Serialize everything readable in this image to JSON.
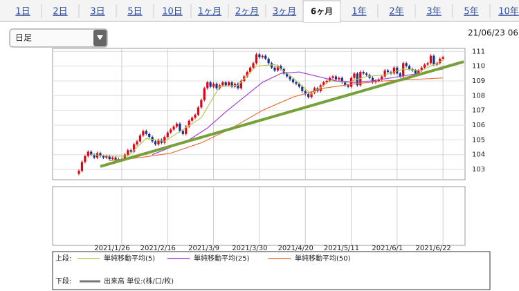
{
  "tabs": [
    "1日",
    "2日",
    "3日",
    "5日",
    "10日",
    "1ヶ月",
    "2ヶ月",
    "3ヶ月",
    "6ヶ月",
    "1年",
    "2年",
    "3年",
    "5年",
    "10年"
  ],
  "selected_tab": "6ヶ月",
  "dropdown": "日足",
  "timestamp": "21/06/23 06",
  "chart_data": {
    "type": "candlestick",
    "up_color": "#e60012",
    "down_color": "#1a2f8a",
    "open": [
      102.7,
      102.9,
      103.5,
      103.9,
      104.2,
      104.0,
      103.8,
      104.1,
      103.9,
      103.8,
      103.9,
      103.7,
      103.8,
      103.6,
      103.7,
      103.7,
      104.0,
      104.3,
      104.2,
      104.7,
      104.9,
      105.3,
      105.6,
      105.4,
      105.2,
      104.9,
      104.7,
      105.0,
      104.8,
      105.2,
      105.5,
      105.7,
      105.9,
      106.1,
      105.6,
      105.4,
      105.9,
      106.3,
      106.5,
      106.7,
      107.2,
      107.7,
      108.5,
      108.9,
      108.6,
      108.8,
      108.5,
      108.7,
      108.9,
      108.7,
      108.9,
      108.6,
      108.8,
      108.5,
      109.0,
      109.3,
      109.6,
      109.9,
      110.2,
      110.8,
      110.6,
      110.7,
      110.5,
      110.2,
      109.9,
      109.7,
      110.0,
      109.8,
      109.5,
      109.3,
      109.1,
      108.9,
      108.8,
      108.6,
      108.3,
      108.1,
      107.9,
      108.2,
      108.5,
      108.3,
      108.7,
      108.9,
      109.0,
      109.2,
      109.3,
      109.1,
      109.2,
      108.9,
      108.7,
      108.6,
      109.2,
      109.5,
      108.7,
      109.6,
      109.5,
      109.4,
      109.2,
      108.9,
      109.0,
      109.1,
      109.3,
      109.7,
      109.6,
      109.5,
      109.9,
      109.5,
      109.3,
      110.2,
      110.0,
      109.8,
      109.7,
      109.5,
      109.7,
      109.9,
      110.1,
      110.2,
      110.7,
      110.1,
      110.2,
      110.5
    ],
    "high": [
      103.0,
      103.6,
      104.0,
      104.3,
      104.3,
      104.1,
      104.2,
      104.2,
      104.0,
      104.0,
      104.0,
      103.9,
      103.9,
      103.8,
      103.8,
      104.1,
      104.4,
      104.4,
      104.8,
      105.0,
      105.4,
      105.7,
      105.7,
      105.5,
      105.3,
      105.0,
      105.1,
      105.1,
      105.3,
      105.6,
      105.8,
      106.0,
      106.2,
      106.2,
      105.7,
      106.0,
      106.4,
      106.6,
      106.8,
      107.3,
      107.8,
      108.6,
      109.0,
      109.0,
      108.9,
      108.9,
      108.8,
      109.0,
      109.0,
      109.0,
      109.0,
      108.9,
      108.9,
      109.1,
      109.4,
      109.7,
      110.0,
      110.3,
      110.9,
      110.9,
      110.8,
      110.8,
      110.6,
      110.3,
      110.0,
      110.1,
      110.1,
      109.9,
      109.6,
      109.4,
      109.2,
      109.0,
      108.9,
      108.7,
      108.4,
      108.2,
      108.3,
      108.6,
      108.6,
      108.8,
      109.0,
      109.1,
      109.3,
      109.4,
      109.4,
      109.3,
      109.3,
      109.0,
      108.8,
      109.3,
      109.6,
      109.6,
      109.7,
      109.7,
      109.6,
      109.5,
      109.3,
      109.1,
      109.2,
      109.4,
      109.8,
      109.8,
      109.7,
      110.0,
      110.0,
      109.6,
      110.3,
      110.3,
      110.1,
      109.9,
      109.8,
      109.8,
      110.0,
      110.2,
      110.3,
      110.8,
      110.8,
      110.3,
      110.6,
      110.7
    ],
    "low": [
      102.6,
      102.8,
      103.4,
      103.8,
      103.9,
      103.7,
      103.7,
      103.8,
      103.7,
      103.7,
      103.6,
      103.6,
      103.5,
      103.5,
      103.6,
      103.6,
      103.9,
      104.1,
      104.1,
      104.6,
      104.8,
      105.2,
      105.3,
      105.1,
      104.8,
      104.6,
      104.6,
      104.7,
      104.7,
      105.1,
      105.4,
      105.6,
      105.8,
      105.5,
      105.3,
      105.3,
      105.8,
      106.2,
      106.4,
      106.6,
      107.1,
      107.6,
      108.4,
      108.5,
      108.5,
      108.4,
      108.4,
      108.6,
      108.6,
      108.6,
      108.5,
      108.5,
      108.4,
      108.4,
      108.9,
      109.2,
      109.5,
      109.8,
      110.1,
      110.5,
      110.5,
      110.4,
      110.1,
      109.8,
      109.6,
      109.6,
      109.7,
      109.4,
      109.2,
      109.0,
      108.8,
      108.7,
      108.5,
      108.2,
      108.0,
      107.8,
      107.8,
      108.1,
      108.2,
      108.2,
      108.6,
      108.8,
      108.9,
      109.1,
      109.0,
      109.0,
      108.8,
      108.6,
      108.5,
      108.5,
      109.1,
      108.6,
      108.6,
      109.4,
      109.3,
      109.1,
      108.8,
      108.8,
      108.9,
      109.0,
      109.2,
      109.5,
      109.4,
      109.4,
      109.4,
      109.2,
      109.2,
      109.9,
      109.7,
      109.6,
      109.4,
      109.4,
      109.6,
      109.8,
      110.0,
      110.1,
      110.0,
      110.0,
      110.1,
      110.4
    ],
    "close": [
      102.9,
      103.5,
      103.9,
      104.2,
      104.0,
      103.8,
      104.1,
      103.9,
      103.8,
      103.9,
      103.7,
      103.8,
      103.6,
      103.7,
      103.7,
      104.0,
      104.3,
      104.2,
      104.7,
      104.9,
      105.3,
      105.6,
      105.4,
      105.2,
      104.9,
      104.7,
      105.0,
      104.8,
      105.2,
      105.5,
      105.7,
      105.9,
      106.1,
      105.6,
      105.4,
      105.9,
      106.3,
      106.5,
      106.7,
      107.2,
      107.7,
      108.5,
      108.9,
      108.6,
      108.8,
      108.5,
      108.7,
      108.9,
      108.7,
      108.9,
      108.6,
      108.8,
      108.5,
      109.0,
      109.3,
      109.6,
      109.9,
      110.2,
      110.8,
      110.6,
      110.7,
      110.5,
      110.2,
      109.9,
      109.7,
      110.0,
      109.8,
      109.5,
      109.3,
      109.1,
      108.9,
      108.8,
      108.6,
      108.3,
      108.1,
      107.9,
      108.2,
      108.5,
      108.3,
      108.7,
      108.9,
      109.0,
      109.2,
      109.3,
      109.1,
      109.2,
      108.9,
      108.7,
      108.6,
      109.2,
      109.5,
      108.7,
      109.6,
      109.5,
      109.4,
      109.2,
      108.9,
      109.0,
      109.1,
      109.3,
      109.7,
      109.6,
      109.5,
      109.9,
      109.5,
      109.3,
      110.2,
      110.0,
      109.8,
      109.7,
      109.5,
      109.7,
      109.9,
      110.1,
      110.2,
      110.7,
      110.1,
      110.2,
      110.5,
      110.6
    ],
    "xlim": [
      -8.6,
      126.2
    ],
    "ylim": [
      102.3,
      111.2
    ],
    "yticks": [
      103,
      104,
      105,
      106,
      107,
      108,
      109,
      110,
      111
    ],
    "xticks": [
      {
        "value": 14,
        "label": "2021/1/26"
      },
      {
        "value": 29,
        "label": "2021/2/16"
      },
      {
        "value": 44,
        "label": "2021/3/9"
      },
      {
        "value": 59,
        "label": "2021/3/30"
      },
      {
        "value": 74,
        "label": "2021/4/20"
      },
      {
        "value": 89,
        "label": "2021/5/11"
      },
      {
        "value": 104,
        "label": "2021/6/1"
      },
      {
        "value": 119,
        "label": "2021/6/22"
      }
    ],
    "grid": true,
    "series": [
      {
        "name": "単純移動平均(5)",
        "color": "#b5c957",
        "x": [
          4,
          10,
          16,
          22,
          28,
          34,
          40,
          46,
          52,
          58,
          64,
          70,
          76,
          82,
          88,
          94,
          100,
          106,
          112,
          119
        ],
        "values": [
          104.0,
          103.9,
          103.9,
          105.1,
          104.9,
          105.7,
          106.5,
          108.6,
          108.7,
          110.0,
          110.1,
          109.2,
          108.1,
          109.0,
          108.9,
          109.3,
          109.4,
          109.8,
          109.7,
          110.4
        ]
      },
      {
        "name": "単純移動平均(25)",
        "color": "#a23fd0",
        "x": [
          24,
          30,
          36,
          42,
          48,
          54,
          60,
          66,
          72,
          78,
          84,
          90,
          96,
          102,
          108,
          114,
          119
        ],
        "values": [
          104.0,
          104.5,
          105.0,
          105.8,
          106.9,
          107.9,
          108.9,
          109.5,
          109.6,
          109.3,
          109.0,
          108.9,
          109.0,
          109.2,
          109.4,
          109.6,
          109.8
        ]
      },
      {
        "name": "単純移動平均(50)",
        "color": "#e8703c",
        "x": [
          10,
          20,
          30,
          40,
          50,
          60,
          70,
          80,
          90,
          100,
          110,
          119
        ],
        "values": [
          103.6,
          103.8,
          104.1,
          104.8,
          105.8,
          107.0,
          107.9,
          108.5,
          108.8,
          109.0,
          109.1,
          109.2
        ]
      }
    ],
    "trend_line": {
      "x": [
        7,
        125.8
      ],
      "y": [
        103.2,
        110.3
      ],
      "color": "#75a03a"
    },
    "legend_upper": "上段:",
    "legend_lower": "下段:",
    "volume_legend": {
      "name": "出来高 単位:(株/口/枚)",
      "color": "#777777"
    }
  }
}
